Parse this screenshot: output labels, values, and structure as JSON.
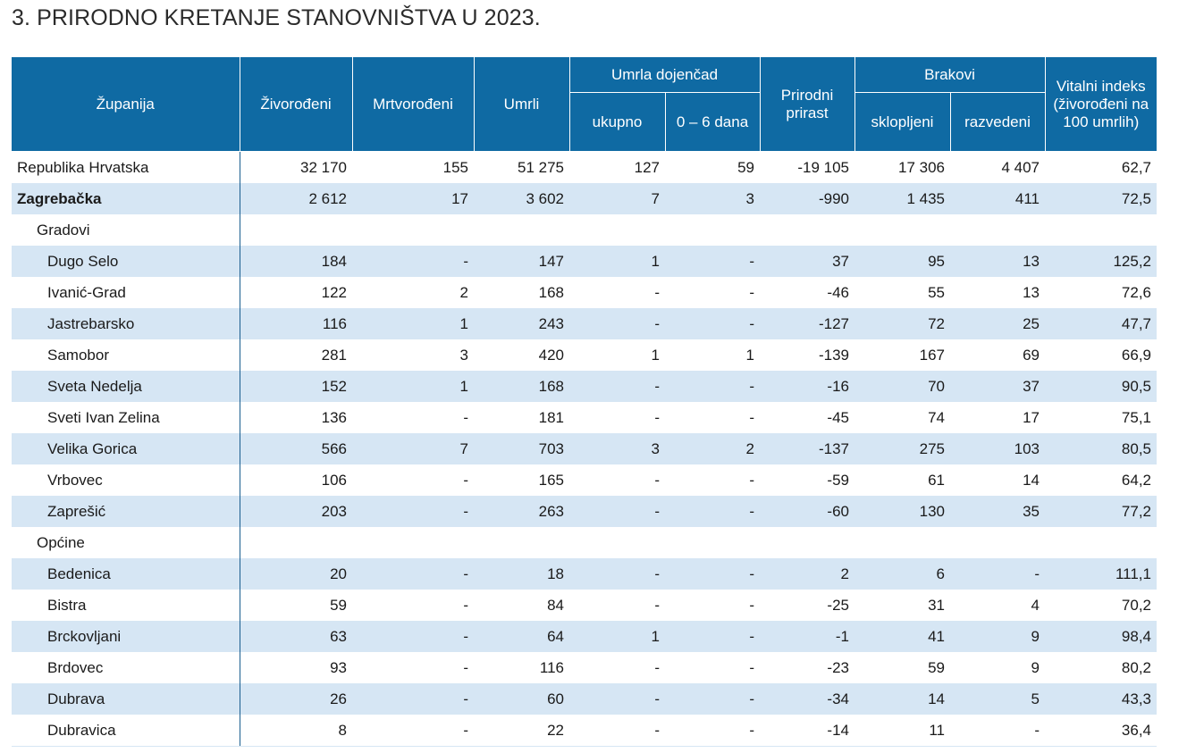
{
  "title": "3. PRIRODNO KRETANJE STANOVNIŠTVA U 2023.",
  "headers": {
    "zupanija": "Županija",
    "zivorodeni": "Živorođeni",
    "mrtvorodeni": "Mrtvorođeni",
    "umrli": "Umrli",
    "umrla_dojencad": "Umrla dojenčad",
    "ukupno": "ukupno",
    "dana_0_6": "0 – 6 dana",
    "prirodni_prirast": "Prirodni prirast",
    "brakovi": "Brakovi",
    "sklopljeni": "sklopljeni",
    "razvedeni": "razvedeni",
    "vitalni_indeks": "Vitalni indeks (živorođeni na 100 umrlih)"
  },
  "rows": [
    {
      "name": "Republika Hrvatska",
      "v": [
        "32 170",
        "155",
        "51 275",
        "127",
        "59",
        "-19 105",
        "17 306",
        "4 407",
        "62,7"
      ]
    },
    {
      "name": "Zagrebačka",
      "v": [
        "2 612",
        "17",
        "3 602",
        "7",
        "3",
        "-990",
        "1 435",
        "411",
        "72,5"
      ]
    },
    {
      "name": "Gradovi",
      "v": [
        "",
        "",
        "",
        "",
        "",
        "",
        "",
        "",
        ""
      ]
    },
    {
      "name": "Dugo Selo",
      "v": [
        "184",
        "-",
        "147",
        "1",
        "-",
        "37",
        "95",
        "13",
        "125,2"
      ]
    },
    {
      "name": "Ivanić-Grad",
      "v": [
        "122",
        "2",
        "168",
        "-",
        "-",
        "-46",
        "55",
        "13",
        "72,6"
      ]
    },
    {
      "name": "Jastrebarsko",
      "v": [
        "116",
        "1",
        "243",
        "-",
        "-",
        "-127",
        "72",
        "25",
        "47,7"
      ]
    },
    {
      "name": "Samobor",
      "v": [
        "281",
        "3",
        "420",
        "1",
        "1",
        "-139",
        "167",
        "69",
        "66,9"
      ]
    },
    {
      "name": "Sveta Nedelja",
      "v": [
        "152",
        "1",
        "168",
        "-",
        "-",
        "-16",
        "70",
        "37",
        "90,5"
      ]
    },
    {
      "name": "Sveti Ivan Zelina",
      "v": [
        "136",
        "-",
        "181",
        "-",
        "-",
        "-45",
        "74",
        "17",
        "75,1"
      ]
    },
    {
      "name": "Velika Gorica",
      "v": [
        "566",
        "7",
        "703",
        "3",
        "2",
        "-137",
        "275",
        "103",
        "80,5"
      ]
    },
    {
      "name": "Vrbovec",
      "v": [
        "106",
        "-",
        "165",
        "-",
        "-",
        "-59",
        "61",
        "14",
        "64,2"
      ]
    },
    {
      "name": "Zaprešić",
      "v": [
        "203",
        "-",
        "263",
        "-",
        "-",
        "-60",
        "130",
        "35",
        "77,2"
      ]
    },
    {
      "name": "Općine",
      "v": [
        "",
        "",
        "",
        "",
        "",
        "",
        "",
        "",
        ""
      ]
    },
    {
      "name": "Bedenica",
      "v": [
        "20",
        "-",
        "18",
        "-",
        "-",
        "2",
        "6",
        "-",
        "111,1"
      ]
    },
    {
      "name": "Bistra",
      "v": [
        "59",
        "-",
        "84",
        "-",
        "-",
        "-25",
        "31",
        "4",
        "70,2"
      ]
    },
    {
      "name": "Brckovljani",
      "v": [
        "63",
        "-",
        "64",
        "1",
        "-",
        "-1",
        "41",
        "9",
        "98,4"
      ]
    },
    {
      "name": "Brdovec",
      "v": [
        "93",
        "-",
        "116",
        "-",
        "-",
        "-23",
        "59",
        "9",
        "80,2"
      ]
    },
    {
      "name": "Dubrava",
      "v": [
        "26",
        "-",
        "60",
        "-",
        "-",
        "-34",
        "14",
        "5",
        "43,3"
      ]
    },
    {
      "name": "Dubravica",
      "v": [
        "8",
        "-",
        "22",
        "-",
        "-",
        "-14",
        "11",
        "-",
        "36,4"
      ]
    }
  ]
}
